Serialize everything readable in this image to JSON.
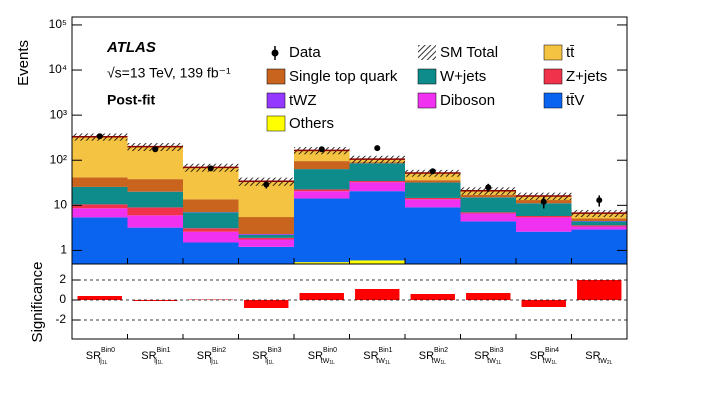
{
  "chart_data": {
    "type": "stacked-bar-log",
    "experiment": "ATLAS",
    "energy_label": "√s=13 TeV, 139 fb⁻¹",
    "fit_label": "Post-fit",
    "ylabel": "Events",
    "log_scale": true,
    "ylim": [
      0.5,
      150000
    ],
    "yticks": [
      1,
      10,
      {
        "value": 100,
        "label": "10²"
      },
      {
        "value": 1000,
        "label": "10³"
      },
      {
        "value": 10000,
        "label": "10⁴"
      },
      {
        "value": 100000,
        "label": "10⁵"
      }
    ],
    "categories": [
      {
        "text": "SR",
        "sup": "Bin0",
        "sub": "lj",
        "subsub": "1L"
      },
      {
        "text": "SR",
        "sup": "Bin1",
        "sub": "lj",
        "subsub": "1L"
      },
      {
        "text": "SR",
        "sup": "Bin2",
        "sub": "lj",
        "subsub": "1L"
      },
      {
        "text": "SR",
        "sup": "Bin3",
        "sub": "lj",
        "subsub": "1L"
      },
      {
        "text": "SR",
        "sup": "Bin0",
        "sub": "tW",
        "subsub": "1L"
      },
      {
        "text": "SR",
        "sup": "Bin1",
        "sub": "tW",
        "subsub": "1L"
      },
      {
        "text": "SR",
        "sup": "Bin2",
        "sub": "tW",
        "subsub": "1L"
      },
      {
        "text": "SR",
        "sup": "Bin3",
        "sub": "tW",
        "subsub": "1L"
      },
      {
        "text": "SR",
        "sup": "Bin4",
        "sub": "tW",
        "subsub": "1L"
      },
      {
        "text": "SR",
        "sub": "tW",
        "subsub": "2L"
      }
    ],
    "series": [
      {
        "name": "Others",
        "color": "#ffff00",
        "values": [
          0,
          0,
          0,
          0,
          0.55,
          0.6,
          0,
          0,
          0,
          0
        ]
      },
      {
        "name": "tt̄V",
        "color": "#0a64f0",
        "values": [
          5.4,
          3.2,
          1.5,
          1.2,
          13.6,
          20,
          9,
          4.4,
          2.6,
          2.9
        ]
      },
      {
        "name": "Diboson",
        "color": "#f032f0",
        "values": [
          3.2,
          2.8,
          1.1,
          0.55,
          6.4,
          12,
          4.6,
          2.2,
          2.8,
          0.5
        ]
      },
      {
        "name": "Z+jets",
        "color": "#f0324b",
        "values": [
          1.9,
          3,
          0.5,
          0.15,
          2,
          2,
          1,
          0.4,
          0.4,
          0.2
        ]
      },
      {
        "name": "W+jets",
        "color": "#0e8c8c",
        "values": [
          15,
          11,
          3.9,
          0.3,
          41,
          51,
          17.4,
          8,
          5.2,
          0.8
        ]
      },
      {
        "name": "tWZ",
        "color": "#9437ff",
        "values": [
          0.1,
          0.1,
          0.1,
          0.1,
          0.1,
          0.1,
          0.1,
          0.1,
          0.1,
          0.1
        ]
      },
      {
        "name": "Single top quark",
        "color": "#c8641e",
        "values": [
          16,
          18,
          6.5,
          3.2,
          32,
          5,
          4,
          2,
          2,
          0.6
        ]
      },
      {
        "name": "tt̄",
        "color": "#f5c342",
        "values": [
          290,
          162,
          56,
          28.6,
          70,
          15,
          16,
          4,
          3,
          1.6
        ]
      }
    ],
    "sm_total": {
      "name": "SM Total",
      "uncertainty": [
        60,
        40,
        14,
        7,
        30,
        20,
        9,
        4,
        3,
        1.2
      ]
    },
    "data": {
      "name": "Data",
      "values": [
        340,
        175,
        66,
        29,
        175,
        185,
        57,
        25,
        12,
        13
      ],
      "errors": [
        18,
        13,
        8,
        5.4,
        13,
        14,
        7.5,
        5,
        3.5,
        3.6
      ]
    },
    "significance": {
      "ylabel": "Significance",
      "color": "#ff0000",
      "ylim": [
        -3.9,
        3.6
      ],
      "yticks": [
        -2,
        0,
        2
      ],
      "grid": true,
      "values": [
        0.4,
        -0.1,
        0.05,
        -0.8,
        0.7,
        1.1,
        0.6,
        0.7,
        -0.7,
        2.0
      ]
    }
  }
}
